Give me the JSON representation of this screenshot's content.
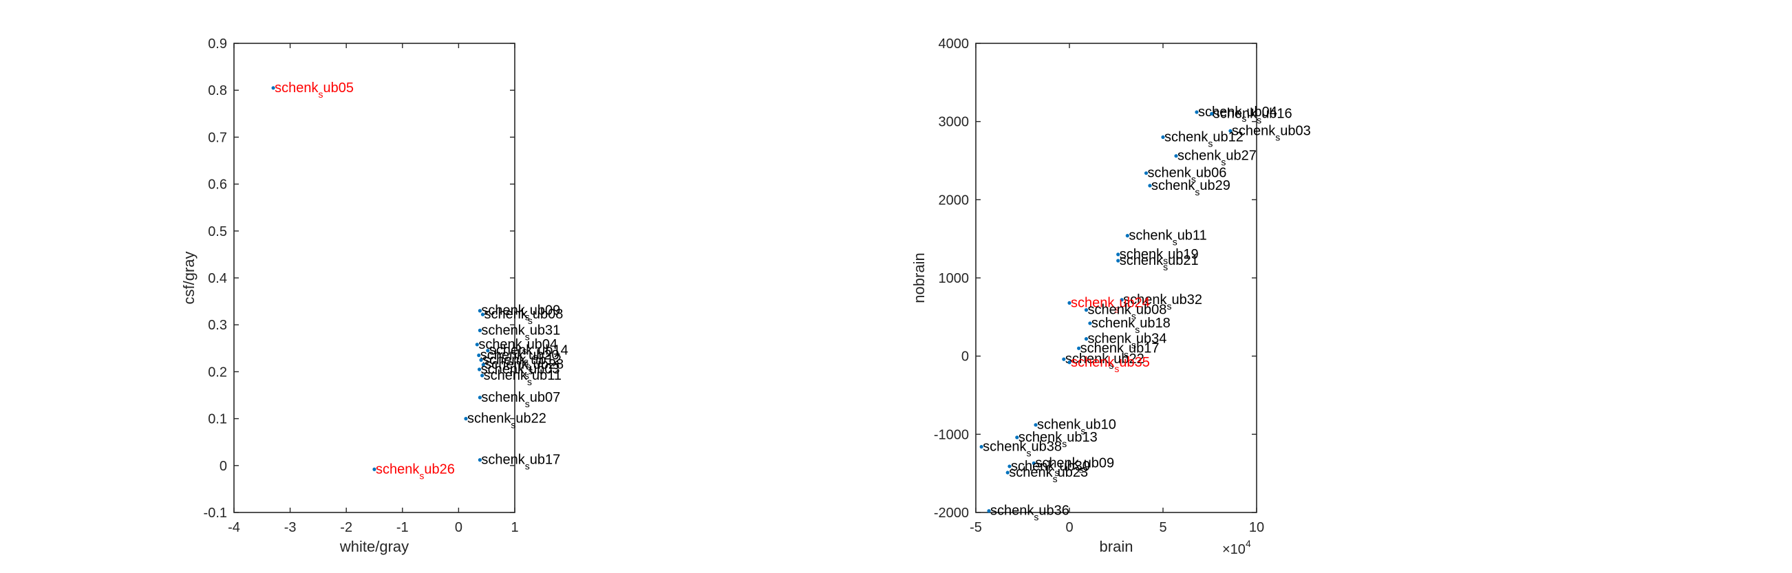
{
  "chart_data": [
    {
      "type": "scatter",
      "xlabel": "white/gray",
      "ylabel": "csf/gray",
      "xlim": [
        -4,
        1
      ],
      "ylim": [
        -0.1,
        0.9
      ],
      "xticks": [
        "-4",
        "-3",
        "-2",
        "-1",
        "0",
        "1"
      ],
      "yticks": [
        "-0.1",
        "0",
        "0.1",
        "0.2",
        "0.3",
        "0.4",
        "0.5",
        "0.6",
        "0.7",
        "0.8",
        "0.9"
      ],
      "marker_color": "#0072BD",
      "label_color": "#000000",
      "highlight_color": "#FF0000",
      "points": [
        {
          "label": "schenk_sub05",
          "x": -3.3,
          "y": 0.805,
          "highlight": true
        },
        {
          "label": "schenk_sub26",
          "x": -1.5,
          "y": -0.008,
          "highlight": true
        },
        {
          "label": "schenk_sub09",
          "x": 0.38,
          "y": 0.33,
          "highlight": false
        },
        {
          "label": "schenk_sub08",
          "x": 0.43,
          "y": 0.322,
          "highlight": false
        },
        {
          "label": "schenk_sub31",
          "x": 0.38,
          "y": 0.288,
          "highlight": false
        },
        {
          "label": "schenk_sub04",
          "x": 0.33,
          "y": 0.258,
          "highlight": false
        },
        {
          "label": "schenk_sub14",
          "x": 0.52,
          "y": 0.245,
          "highlight": false
        },
        {
          "label": "schenk_sub20",
          "x": 0.36,
          "y": 0.235,
          "highlight": false
        },
        {
          "label": "schenk_sub12",
          "x": 0.4,
          "y": 0.225,
          "highlight": false
        },
        {
          "label": "schenk_sub28",
          "x": 0.44,
          "y": 0.215,
          "highlight": false
        },
        {
          "label": "schenk_sub03",
          "x": 0.37,
          "y": 0.205,
          "highlight": false
        },
        {
          "label": "schenk_sub11",
          "x": 0.42,
          "y": 0.192,
          "highlight": false
        },
        {
          "label": "schenk_sub07",
          "x": 0.38,
          "y": 0.145,
          "highlight": false
        },
        {
          "label": "schenk_sub22",
          "x": 0.13,
          "y": 0.1,
          "highlight": false
        },
        {
          "label": "schenk_sub17",
          "x": 0.38,
          "y": 0.012,
          "highlight": false
        }
      ]
    },
    {
      "type": "scatter",
      "xlabel": "brain",
      "ylabel": "nobrain",
      "xlim": [
        -5,
        10
      ],
      "ylim": [
        -2000,
        4000
      ],
      "xticks": [
        "-5",
        "0",
        "5",
        "10"
      ],
      "yticks": [
        "-2000",
        "-1000",
        "0",
        "1000",
        "2000",
        "3000",
        "4000"
      ],
      "x_exponent_label": "×10",
      "x_exponent": "4",
      "marker_color": "#0072BD",
      "label_color": "#000000",
      "highlight_color": "#FF0000",
      "points": [
        {
          "label": "schenk_sub04",
          "x": 6.8,
          "y": 3120,
          "highlight": false
        },
        {
          "label": "schenk_sub16",
          "x": 7.6,
          "y": 3100,
          "highlight": false
        },
        {
          "label": "schenk_sub03",
          "x": 8.6,
          "y": 2880,
          "highlight": false
        },
        {
          "label": "schenk_sub12",
          "x": 5.0,
          "y": 2800,
          "highlight": false
        },
        {
          "label": "schenk_sub27",
          "x": 5.7,
          "y": 2560,
          "highlight": false
        },
        {
          "label": "schenk_sub06",
          "x": 4.1,
          "y": 2340,
          "highlight": false
        },
        {
          "label": "schenk_sub29",
          "x": 4.3,
          "y": 2180,
          "highlight": false
        },
        {
          "label": "schenk_sub11",
          "x": 3.1,
          "y": 1540,
          "highlight": false
        },
        {
          "label": "schenk_sub19",
          "x": 2.6,
          "y": 1300,
          "highlight": false
        },
        {
          "label": "schenk_sub21",
          "x": 2.6,
          "y": 1220,
          "highlight": false
        },
        {
          "label": "schenk_sub32",
          "x": 2.8,
          "y": 720,
          "highlight": false
        },
        {
          "label": "schenk_sub24",
          "x": 0.0,
          "y": 680,
          "highlight": true
        },
        {
          "label": "schenk_sub08",
          "x": 0.9,
          "y": 590,
          "highlight": false
        },
        {
          "label": "schenk_sub18",
          "x": 1.1,
          "y": 420,
          "highlight": false
        },
        {
          "label": "schenk_sub34",
          "x": 0.9,
          "y": 220,
          "highlight": false
        },
        {
          "label": "schenk_sub17",
          "x": 0.5,
          "y": 100,
          "highlight": false
        },
        {
          "label": "schenk_sub22",
          "x": -0.3,
          "y": -40,
          "highlight": false
        },
        {
          "label": "schenk_sub35",
          "x": 0.0,
          "y": -80,
          "highlight": true
        },
        {
          "label": "schenk_sub10",
          "x": -1.8,
          "y": -880,
          "highlight": false
        },
        {
          "label": "schenk_sub13",
          "x": -2.8,
          "y": -1040,
          "highlight": false
        },
        {
          "label": "schenk_sub38",
          "x": -4.7,
          "y": -1160,
          "highlight": false
        },
        {
          "label": "schenk_sub09",
          "x": -1.9,
          "y": -1370,
          "highlight": false
        },
        {
          "label": "schenk_sub30",
          "x": -3.2,
          "y": -1410,
          "highlight": false
        },
        {
          "label": "schenk_sub23",
          "x": -3.3,
          "y": -1490,
          "highlight": false
        },
        {
          "label": "schenk_sub36",
          "x": -4.3,
          "y": -1980,
          "highlight": false
        }
      ]
    }
  ]
}
